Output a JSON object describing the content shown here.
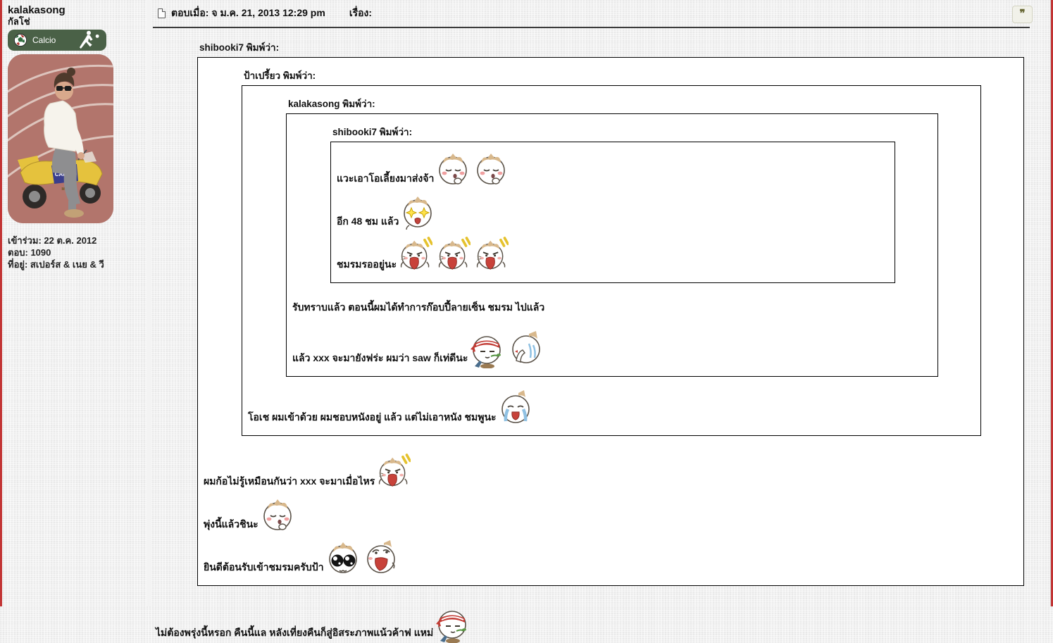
{
  "sidebar": {
    "username": "kalakasong",
    "subtitle": "กัลโช่",
    "badge": {
      "label": "Calcio",
      "bg_color": "#4a6147"
    },
    "avatar": {
      "decal1": "CAMEL",
      "decal2": "MOTO"
    },
    "joined": "เข้าร่วม: 22 ต.ค. 2012",
    "posts": "ตอบ: 1090",
    "location": "ที่อยู่: สเปอร์ส & เนย & วี"
  },
  "header": {
    "posted": "ตอบเมื่อ: จ ม.ค. 21, 2013 12:29 pm",
    "subject": "เรื่อง:",
    "quote_button_glyph": "❞"
  },
  "post": {
    "quote1": {
      "caption": "shibooki7 พิมพ์ว่า:",
      "quote2": {
        "caption": "ป้าเปรี้ยว พิมพ์ว่า:",
        "quote3": {
          "caption": "kalakasong พิมพ์ว่า:",
          "quote4": {
            "caption": "shibooki7 พิมพ์ว่า:",
            "lines": [
              {
                "text": "แวะเอาโอเลี้ยงมาส่งจ้า",
                "emoticons": [
                  "blush-cat",
                  "blush-cat"
                ]
              },
              {
                "text": "อีก 48 ชม แล้ว",
                "emoticons": [
                  "sparkle-cat"
                ]
              },
              {
                "text": "ชมรมรออยู่นะ",
                "emoticons": [
                  "shout-cat",
                  "shout-cat",
                  "shout-cat"
                ]
              }
            ]
          },
          "lines": [
            {
              "text": "รับทราบแล้ว ตอนนี้ผมได้ทำการก๊อบปี้ลายเซ็น ชมรม ไปแล้ว",
              "emoticons": []
            },
            {
              "text": "แล้ว xxx จะมายังฟร่ะ ผมว่า saw ก็เท่ดีนะ",
              "emoticons": [
                "ninja-cat",
                "sob-cat"
              ]
            }
          ]
        },
        "lines": [
          {
            "text": "โอเช ผมเข้าด้วย ผมชอบหนังอยู่ แล้ว แต่ไม่เอาหนัง ชมพูนะ",
            "emoticons": [
              "cry-cat"
            ]
          }
        ]
      },
      "lines": [
        {
          "text": "ผมก้อไม่รู้เหมือนกันว่า xxx จะมาเมื่อไหร",
          "emoticons": [
            "shout-cat"
          ]
        },
        {
          "text": "พุ่งนี้แล้วชินะ",
          "emoticons": [
            "blush-cat"
          ]
        },
        {
          "text": "ยินดีต้อนรับเข้าชมรมครับป้า",
          "emoticons": [
            "bigeyes-cat",
            "happy-cat"
          ]
        }
      ]
    },
    "outro": {
      "text": "ไม่ต้องพรุ่งนี้หรอก คืนนี้แล หลังเที่ยงคืนก็สู่อิสระภาพแน้วค้าฟ แหม่",
      "emoticons": [
        "ninja-cat"
      ]
    }
  }
}
